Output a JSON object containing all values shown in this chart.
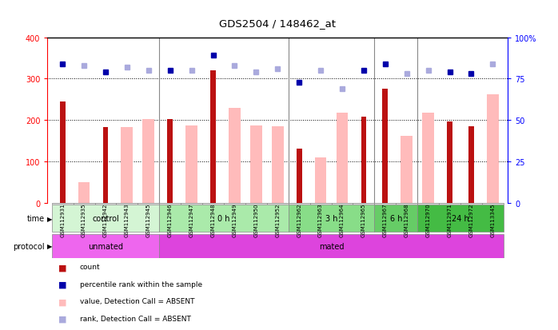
{
  "title": "GDS2504 / 148462_at",
  "samples": [
    "GSM112931",
    "GSM112935",
    "GSM112942",
    "GSM112943",
    "GSM112945",
    "GSM112946",
    "GSM112947",
    "GSM112948",
    "GSM112949",
    "GSM112950",
    "GSM112952",
    "GSM112962",
    "GSM112963",
    "GSM112964",
    "GSM112965",
    "GSM112967",
    "GSM112968",
    "GSM112970",
    "GSM112971",
    "GSM112972",
    "GSM113345"
  ],
  "count_values": [
    245,
    null,
    182,
    null,
    null,
    202,
    null,
    320,
    null,
    null,
    null,
    130,
    null,
    null,
    207,
    275,
    null,
    null,
    196,
    184,
    null
  ],
  "absent_value_values": [
    null,
    50,
    null,
    182,
    202,
    null,
    186,
    null,
    230,
    186,
    184,
    null,
    110,
    218,
    null,
    null,
    162,
    218,
    null,
    null,
    262
  ],
  "rank_count_values": [
    84,
    null,
    79,
    null,
    null,
    80,
    null,
    89,
    null,
    null,
    null,
    73,
    null,
    null,
    80,
    84,
    null,
    null,
    79,
    78,
    null
  ],
  "rank_absent_values": [
    null,
    83,
    null,
    82,
    80,
    null,
    80,
    null,
    83,
    79,
    81,
    null,
    80,
    69,
    null,
    null,
    78,
    80,
    null,
    null,
    84
  ],
  "time_groups": [
    {
      "label": "control",
      "start": 0,
      "end": 5,
      "color": "#d4f5d4"
    },
    {
      "label": "0 h",
      "start": 5,
      "end": 11,
      "color": "#aaeaaa"
    },
    {
      "label": "3 h",
      "start": 11,
      "end": 15,
      "color": "#88dd88"
    },
    {
      "label": "6 h",
      "start": 15,
      "end": 17,
      "color": "#66cc66"
    },
    {
      "label": "24 h",
      "start": 17,
      "end": 21,
      "color": "#44bb44"
    }
  ],
  "protocol_groups": [
    {
      "label": "unmated",
      "start": 0,
      "end": 5,
      "color": "#ee66ee"
    },
    {
      "label": "mated",
      "start": 5,
      "end": 21,
      "color": "#dd44dd"
    }
  ],
  "ylim_left": [
    0,
    400
  ],
  "ylim_right": [
    0,
    100
  ],
  "yticks_left": [
    0,
    100,
    200,
    300,
    400
  ],
  "yticks_right": [
    0,
    25,
    50,
    75,
    100
  ],
  "bar_color_count": "#bb1111",
  "bar_color_absent": "#ffbbbb",
  "dot_color_rank_count": "#0000aa",
  "dot_color_rank_absent": "#aaaadd",
  "background_color": "#ffffff",
  "plot_bg_color": "#ffffff",
  "xtick_bg": "#dddddd"
}
